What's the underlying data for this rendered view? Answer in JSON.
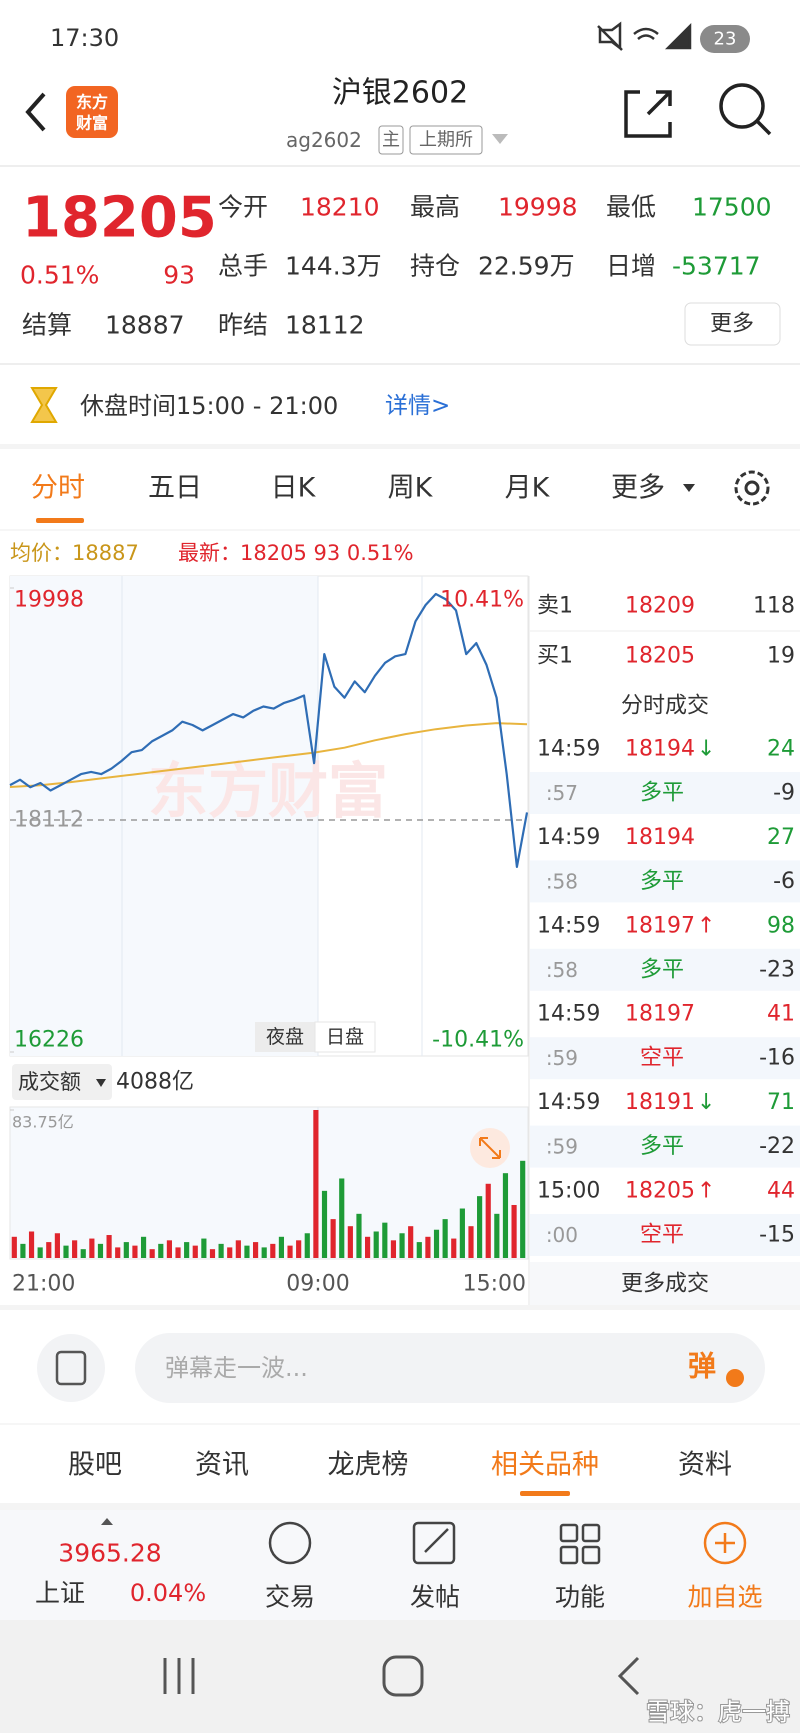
{
  "status_bar": {
    "time": "17:30",
    "battery": "23"
  },
  "header": {
    "logo": [
      "东方",
      "财富"
    ],
    "title": "沪银2602",
    "code": "ag2602",
    "tags": [
      "主",
      "上期所"
    ]
  },
  "colors": {
    "up": "#e0252d",
    "down": "#1e9b37",
    "accent": "#f27a1a",
    "price_line": "#2f6db5",
    "avg_line": "#e8b43e",
    "link": "#2a6fd6"
  },
  "quote": {
    "price": "18205",
    "change_pct": "0.51%",
    "change": "93",
    "fields": [
      {
        "label": "今开",
        "value": "18210",
        "color": "#e0252d"
      },
      {
        "label": "最高",
        "value": "19998",
        "color": "#e0252d"
      },
      {
        "label": "最低",
        "value": "17500",
        "color": "#1e9b37"
      },
      {
        "label": "总手",
        "value": "144.3万",
        "color": "#333333"
      },
      {
        "label": "持仓",
        "value": "22.59万",
        "color": "#333333"
      },
      {
        "label": "日增",
        "value": "-53717",
        "color": "#1e9b37"
      }
    ],
    "settle": [
      {
        "label": "结算",
        "value": "18887"
      },
      {
        "label": "昨结",
        "value": "18112"
      }
    ],
    "more": "更多"
  },
  "notice": {
    "text": "休盘时间15:00 - 21:00",
    "link": "详情>"
  },
  "tabs": {
    "items": [
      "分时",
      "五日",
      "日K",
      "周K",
      "月K",
      "更多"
    ],
    "active": 0
  },
  "info_line": {
    "avg_label": "均价：",
    "avg_value": "18887",
    "latest_label": "最新：",
    "latest_value": "18205 93 0.51%"
  },
  "chart": {
    "ylim": [
      16226,
      19998
    ],
    "yticks": [
      16226,
      19998
    ],
    "pct_labels": [
      "10.41%",
      "-10.41%"
    ],
    "prev_close": 18112,
    "watermark": "东方财富",
    "price": [
      18396,
      18440,
      18378,
      18413,
      18352,
      18396,
      18440,
      18485,
      18503,
      18485,
      18530,
      18592,
      18663,
      18680,
      18751,
      18796,
      18840,
      18911,
      18884,
      18840,
      18884,
      18929,
      18973,
      18946,
      19000,
      19035,
      19018,
      19062,
      19089,
      19124,
      18574,
      19461,
      19195,
      19106,
      19239,
      19151,
      19284,
      19390,
      19443,
      19461,
      19727,
      19860,
      19949,
      19905,
      19816,
      19461,
      19550,
      19373,
      19106,
      18485,
      17731,
      18174
    ],
    "avg": [
      18380,
      18395,
      18420,
      18450,
      18480,
      18510,
      18540,
      18570,
      18600,
      18630,
      18660,
      18700,
      18760,
      18810,
      18850,
      18880,
      18900,
      18890
    ],
    "session_buttons": [
      "夜盘",
      "日盘"
    ],
    "volume_label": "成交额",
    "volume_total": "4088亿",
    "volume_ylim": [
      0,
      83.75
    ],
    "volume_yticks": [
      {
        "value": 83.75,
        "label": "83.75亿"
      }
    ],
    "volume": [
      12,
      8,
      15,
      6,
      9,
      14,
      7,
      10,
      5,
      11,
      8,
      13,
      6,
      9,
      7,
      12,
      5,
      8,
      10,
      6,
      9,
      7,
      11,
      5,
      8,
      6,
      10,
      7,
      9,
      6,
      8,
      12,
      7,
      10,
      14,
      83.75,
      38,
      22,
      45,
      18,
      25,
      12,
      15,
      20,
      10,
      14,
      18,
      9,
      12,
      16,
      22,
      11,
      28,
      18,
      35,
      42,
      25,
      48,
      30,
      55
    ],
    "volume_up": [
      true,
      false,
      true,
      false,
      true,
      true,
      false,
      true,
      false,
      true,
      false,
      true,
      true,
      false,
      true,
      false,
      true,
      false,
      true,
      true,
      false,
      true,
      false,
      true,
      false,
      true,
      true,
      false,
      true,
      false,
      true,
      false,
      true,
      true,
      false,
      true,
      false,
      true,
      false,
      true,
      false,
      true,
      false,
      false,
      true,
      false,
      true,
      false,
      true,
      false,
      false,
      true,
      false,
      true,
      false,
      true,
      false,
      false,
      true,
      false
    ],
    "time_labels": [
      "21:00",
      "09:00",
      "15:00"
    ]
  },
  "order_book": [
    {
      "side": "卖1",
      "price": "18209",
      "volume": "118"
    },
    {
      "side": "买1",
      "price": "18205",
      "volume": "19"
    }
  ],
  "trades_title": "分时成交",
  "trades": [
    {
      "time": "14:59",
      "price": "18194",
      "dir": "↓",
      "dir_color": "#1e9b37",
      "vol": "24",
      "vol_color": "#1e9b37",
      "sub_time": ":57",
      "type": "多平",
      "type_color": "#1e9b37",
      "change": "-9"
    },
    {
      "time": "14:59",
      "price": "18194",
      "vol": "27",
      "vol_color": "#1e9b37",
      "sub_time": ":58",
      "type": "多平",
      "type_color": "#1e9b37",
      "change": "-6"
    },
    {
      "time": "14:59",
      "price": "18197",
      "dir": "↑",
      "dir_color": "#e0252d",
      "vol": "98",
      "vol_color": "#1e9b37",
      "sub_time": ":58",
      "type": "多平",
      "type_color": "#1e9b37",
      "change": "-23"
    },
    {
      "time": "14:59",
      "price": "18197",
      "vol": "41",
      "vol_color": "#e0252d",
      "sub_time": ":59",
      "type": "空平",
      "type_color": "#e0252d",
      "change": "-16"
    },
    {
      "time": "14:59",
      "price": "18191",
      "dir": "↓",
      "dir_color": "#1e9b37",
      "vol": "71",
      "vol_color": "#1e9b37",
      "sub_time": ":59",
      "type": "多平",
      "type_color": "#1e9b37",
      "change": "-22"
    },
    {
      "time": "15:00",
      "price": "18205",
      "dir": "↑",
      "dir_color": "#e0252d",
      "vol": "44",
      "vol_color": "#e0252d",
      "sub_time": ":00",
      "type": "空平",
      "type_color": "#e0252d",
      "change": "-15"
    }
  ],
  "more_trades": "更多成交",
  "comment": {
    "placeholder": "弹幕走一波...",
    "danmu": "弹"
  },
  "sub_tabs": {
    "items": [
      "股吧",
      "资讯",
      "龙虎榜",
      "相关品种",
      "资料"
    ],
    "active": 3
  },
  "bottom_bar": {
    "index_value": "3965.28",
    "index_name": "上证",
    "index_change": "0.04%",
    "items": [
      "交易",
      "发帖",
      "功能",
      "加自选"
    ]
  },
  "footer_watermark": "雪球：虎一搏"
}
